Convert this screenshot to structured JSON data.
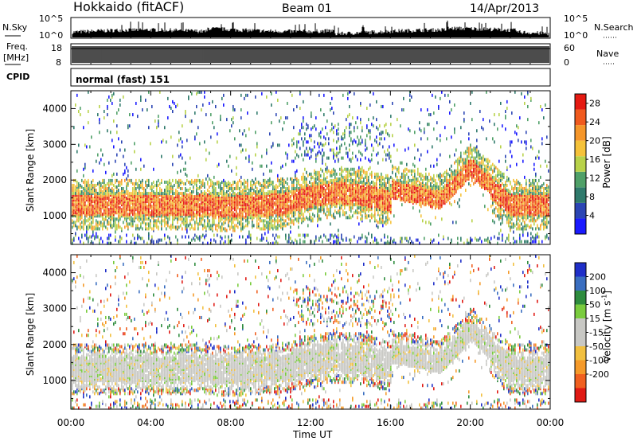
{
  "header": {
    "station": "Hokkaido (fitACF)",
    "beam": "Beam 01",
    "date": "14/Apr/2013"
  },
  "strips": {
    "nsky_label": "N.Sky",
    "nsearch_label": "N.Search",
    "nsky_ticks": [
      "10^5",
      "10^0"
    ],
    "nsearch_ticks": [
      "10^5",
      "10^0"
    ],
    "freq_label_top": "Freq.",
    "freq_label_bottom": "[MHz]",
    "freq_ticks": [
      "18",
      "8"
    ],
    "nave_label": "Nave",
    "nave_ticks": [
      "60",
      "0"
    ],
    "cpid_label": "CPID",
    "cpid_value": "normal (fast) 151"
  },
  "colors": {
    "power_scale": [
      "#1a1aff",
      "#2b45b4",
      "#2f7a6c",
      "#4fa068",
      "#b8d24a",
      "#f5c23a",
      "#f5962a",
      "#f05a1e",
      "#e51a12"
    ],
    "velocity_scale": [
      "#1f2fc8",
      "#3a6ec0",
      "#2e8c3e",
      "#7acc3e",
      "#c8c8c4",
      "#c8c8c4",
      "#f2c040",
      "#f59a2a",
      "#f06020",
      "#e01a14"
    ]
  },
  "chart_data": [
    {
      "type": "heatmap",
      "name": "power",
      "ylabel": "Slant Range [km]",
      "ylim": [
        200,
        4500
      ],
      "yticks": [
        1000,
        2000,
        3000,
        4000
      ],
      "colorbar_label": "Power [dB]",
      "colorbar_ticks": [
        4,
        8,
        12,
        16,
        20,
        24,
        28
      ],
      "colorbar_range": [
        0,
        30
      ]
    },
    {
      "type": "heatmap",
      "name": "velocity",
      "ylabel": "Slant Range [km]",
      "ylim": [
        200,
        4500
      ],
      "yticks": [
        1000,
        2000,
        3000,
        4000
      ],
      "colorbar_label": "Velocity [m s^-1]",
      "colorbar_ticks": [
        200,
        100,
        50,
        15,
        -15,
        -50,
        -100,
        -200
      ]
    }
  ],
  "xaxis": {
    "label": "Time UT",
    "ticks": [
      "00:00",
      "04:00",
      "08:00",
      "12:00",
      "16:00",
      "20:00",
      "00:00"
    ]
  }
}
